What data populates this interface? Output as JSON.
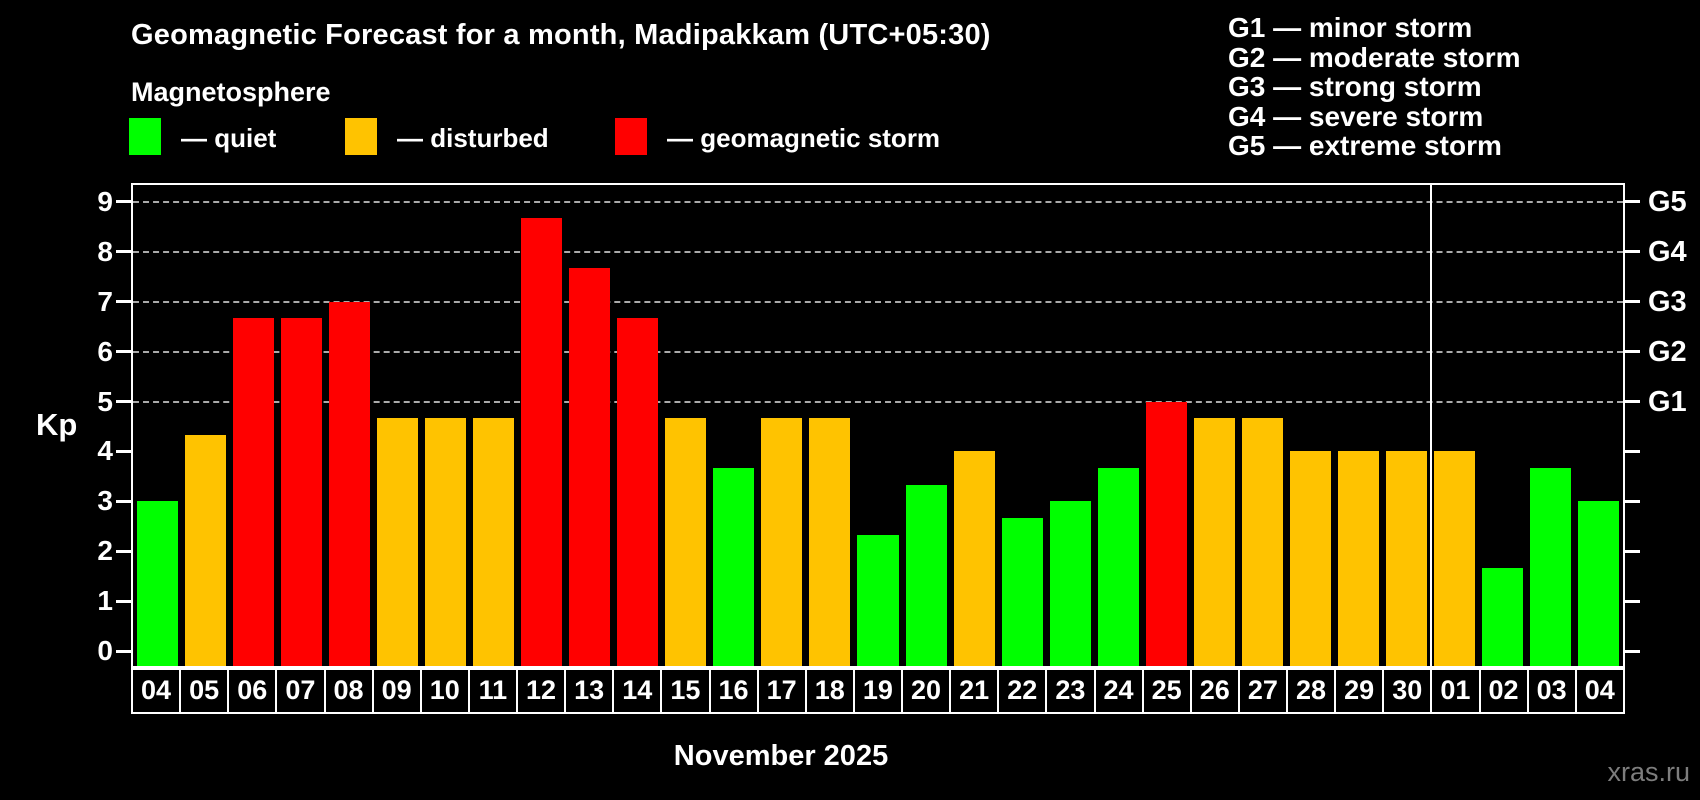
{
  "header": {
    "title": "Geomagnetic Forecast for a month, Madipakkam (UTC+05:30)",
    "subtitle": "Magnetosphere"
  },
  "legend": {
    "items": [
      {
        "key": "quiet",
        "label": "— quiet"
      },
      {
        "key": "disturbed",
        "label": "— disturbed"
      },
      {
        "key": "storm",
        "label": "— geomagnetic storm"
      }
    ]
  },
  "g_scale_legend": {
    "lines": [
      "G1 — minor storm",
      "G2 — moderate storm",
      "G3 — strong storm",
      "G4 — severe storm",
      "G5 — extreme storm"
    ]
  },
  "colors": {
    "quiet": "#00ff00",
    "disturbed": "#ffc300",
    "storm": "#ff0000",
    "grid": "#aaaaaa",
    "axis": "#ffffff",
    "text": "#ffffff",
    "watermark": "#7d7d7d",
    "background": "#000000"
  },
  "axis": {
    "y_label": "Kp",
    "y_ticks": [
      0,
      1,
      2,
      3,
      4,
      5,
      6,
      7,
      8,
      9
    ],
    "g_labels": [
      {
        "label": "G1",
        "kp": 5
      },
      {
        "label": "G2",
        "kp": 6
      },
      {
        "label": "G3",
        "kp": 7
      },
      {
        "label": "G4",
        "kp": 8
      },
      {
        "label": "G5",
        "kp": 9
      }
    ],
    "x_month_label": "November 2025"
  },
  "watermark": "xras.ru",
  "chart_data": {
    "type": "bar",
    "title": "Geomagnetic Forecast for a month, Madipakkam (UTC+05:30)",
    "xlabel": "November 2025",
    "ylabel": "Kp",
    "ylim": [
      0,
      9
    ],
    "grid": "dashed horizontal lines at Kp 5-9 (G1-G5)",
    "grid_levels": [
      5,
      6,
      7,
      8,
      9
    ],
    "legend_position": "top-left",
    "categories": [
      "04",
      "05",
      "06",
      "07",
      "08",
      "09",
      "10",
      "11",
      "12",
      "13",
      "14",
      "15",
      "16",
      "17",
      "18",
      "19",
      "20",
      "21",
      "22",
      "23",
      "24",
      "25",
      "26",
      "27",
      "28",
      "29",
      "30",
      "01",
      "02",
      "03",
      "04"
    ],
    "values": [
      3.0,
      4.33,
      6.67,
      6.67,
      7.0,
      4.67,
      4.67,
      4.67,
      8.67,
      7.67,
      6.67,
      4.67,
      3.67,
      4.67,
      4.67,
      2.33,
      3.33,
      4.0,
      2.67,
      3.0,
      3.67,
      5.0,
      4.67,
      4.67,
      4.0,
      4.0,
      4.0,
      4.0,
      1.67,
      3.67,
      3.0
    ],
    "statuses": [
      "quiet",
      "disturbed",
      "storm",
      "storm",
      "storm",
      "disturbed",
      "disturbed",
      "disturbed",
      "storm",
      "storm",
      "storm",
      "disturbed",
      "quiet",
      "disturbed",
      "disturbed",
      "quiet",
      "quiet",
      "disturbed",
      "quiet",
      "quiet",
      "quiet",
      "storm",
      "disturbed",
      "disturbed",
      "disturbed",
      "disturbed",
      "disturbed",
      "disturbed",
      "quiet",
      "quiet",
      "quiet"
    ],
    "month_separator_after_index": 26
  }
}
